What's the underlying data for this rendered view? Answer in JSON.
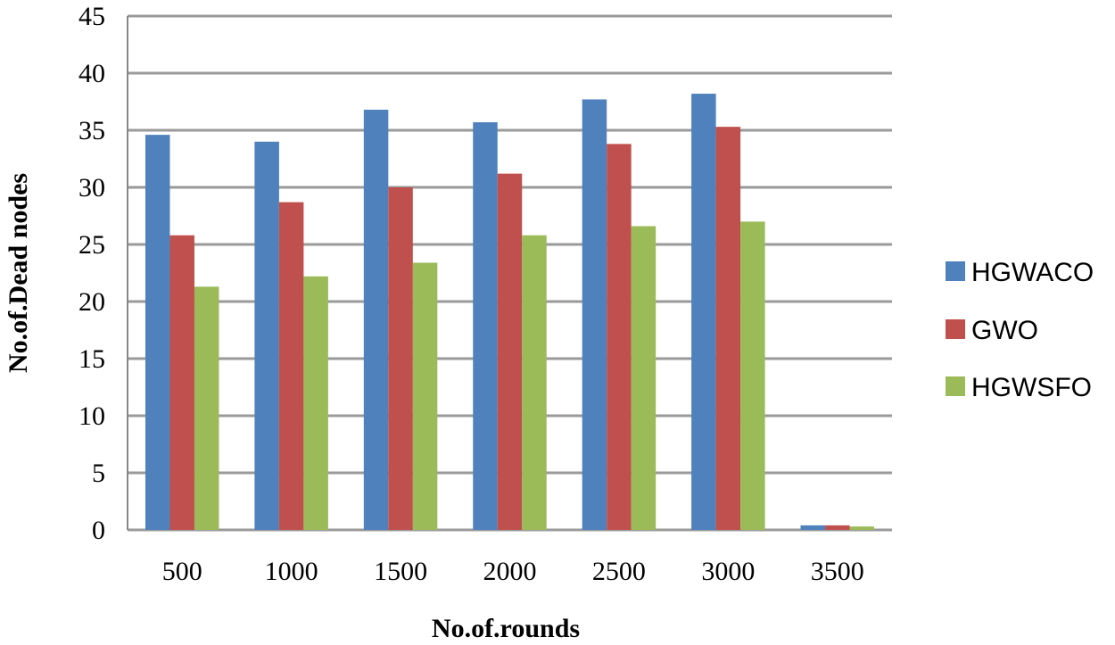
{
  "chart_data": {
    "type": "bar",
    "title": "",
    "xlabel": "No.of.rounds",
    "ylabel": "No.of.Dead nodes",
    "categories": [
      "500",
      "1000",
      "1500",
      "2000",
      "2500",
      "3000",
      "3500"
    ],
    "series": [
      {
        "name": "HGWACO",
        "color": "#4f81bd",
        "values": [
          34.6,
          34.0,
          36.8,
          35.7,
          37.7,
          38.2,
          0.4
        ]
      },
      {
        "name": "GWO",
        "color": "#c0504d",
        "values": [
          25.8,
          28.7,
          30.0,
          31.2,
          33.8,
          35.3,
          0.4
        ]
      },
      {
        "name": "HGWSFO",
        "color": "#9bbb59",
        "values": [
          21.3,
          22.2,
          23.4,
          25.8,
          26.6,
          27.0,
          0.3
        ]
      }
    ],
    "yticks": [
      "0",
      "5",
      "10",
      "15",
      "20",
      "25",
      "30",
      "35",
      "40",
      "45"
    ],
    "ylim": [
      0,
      45
    ],
    "grid": true,
    "legend_position": "right"
  }
}
